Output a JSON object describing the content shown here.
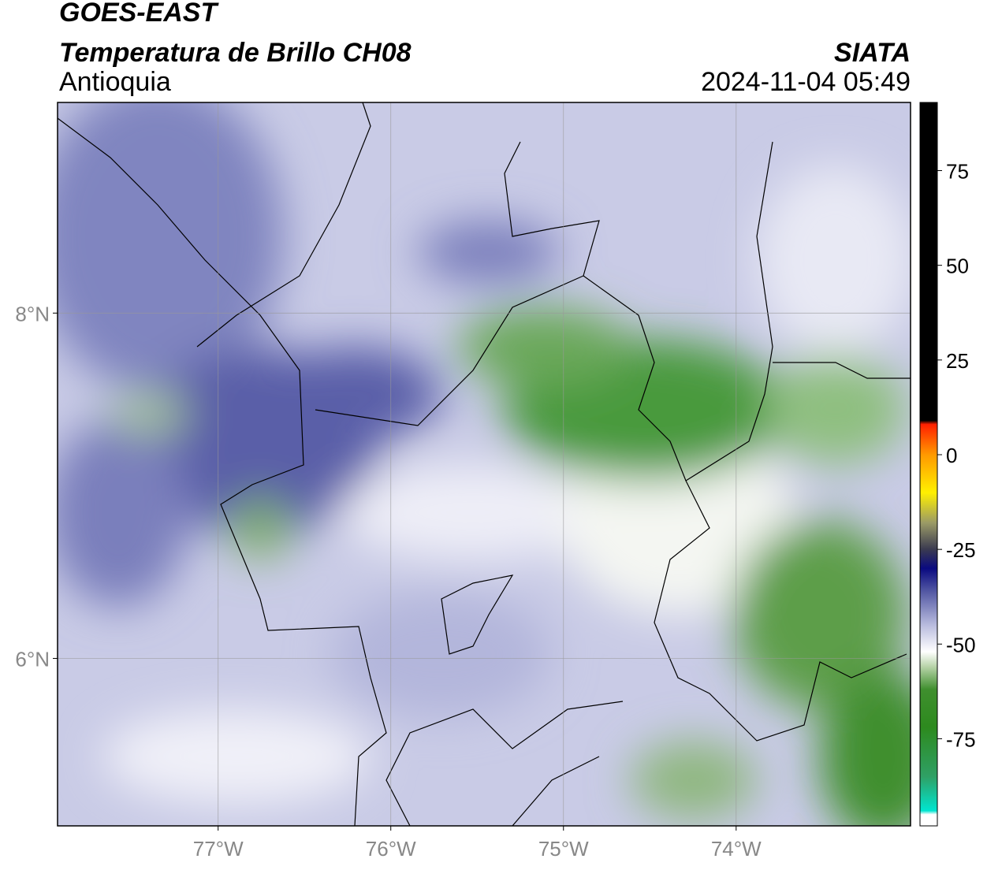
{
  "header": {
    "title": "GOES-EAST",
    "subtitle": "Temperatura de Brillo CH08",
    "region": "Antioquia",
    "source": "SIATA",
    "timestamp": "2024-11-04 05:49"
  },
  "map": {
    "xlim": [
      -77.93,
      -72.99
    ],
    "ylim": [
      5.03,
      9.22
    ],
    "xticks": [
      {
        "value": -77,
        "label": "77°W"
      },
      {
        "value": -76,
        "label": "76°W"
      },
      {
        "value": -75,
        "label": "75°W"
      },
      {
        "value": -74,
        "label": "74°W"
      }
    ],
    "yticks": [
      {
        "value": 8,
        "label": "8°N"
      },
      {
        "value": 6,
        "label": "6°N"
      }
    ],
    "grid": true
  },
  "colorbar": {
    "ylim": [
      -98,
      93
    ],
    "yticks": [
      75,
      50,
      25,
      0,
      -25,
      -50,
      -75
    ],
    "stops": [
      {
        "value": -98,
        "color": "#ffffff"
      },
      {
        "value": -95,
        "color": "#ffffff"
      },
      {
        "value": -94,
        "color": "#00e5d0"
      },
      {
        "value": -85,
        "color": "#2fa065"
      },
      {
        "value": -72,
        "color": "#2d8a1e"
      },
      {
        "value": -62,
        "color": "#3f8f2e"
      },
      {
        "value": -56,
        "color": "#b7d3a8"
      },
      {
        "value": -52,
        "color": "#ffffff"
      },
      {
        "value": -45,
        "color": "#b9bcde"
      },
      {
        "value": -36,
        "color": "#5257a3"
      },
      {
        "value": -30,
        "color": "#0a0a80"
      },
      {
        "value": -25,
        "color": "#3a3a50"
      },
      {
        "value": -18,
        "color": "#9a9a66"
      },
      {
        "value": -10,
        "color": "#fff000"
      },
      {
        "value": 0,
        "color": "#ff9900"
      },
      {
        "value": 8,
        "color": "#ff2000"
      },
      {
        "value": 9,
        "color": "#000000"
      },
      {
        "value": 93,
        "color": "#000000"
      }
    ]
  }
}
